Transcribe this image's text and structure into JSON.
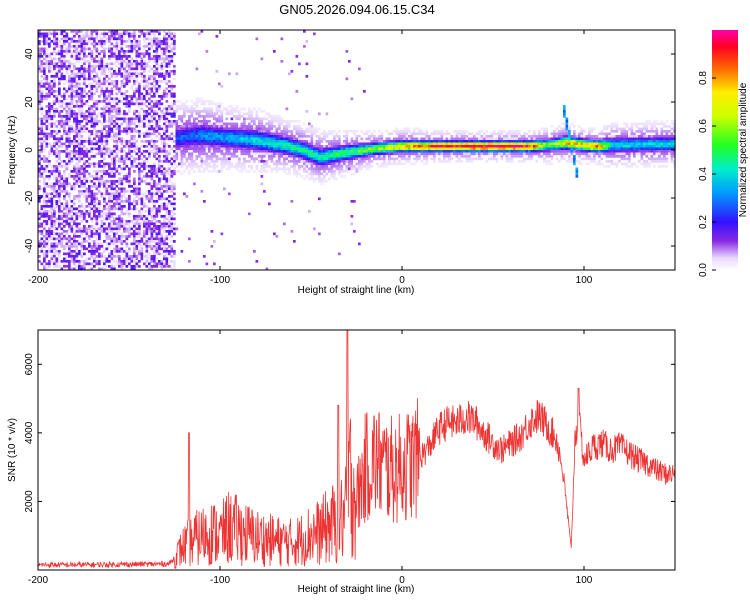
{
  "title": "GN05.2026.094.06.15.C34",
  "colors": {
    "snr_line": "#ee3333",
    "axis": "#000000",
    "background": "#ffffff"
  },
  "chart_data": [
    {
      "type": "heatmap",
      "title": "",
      "xlabel": "Height of straight line (km)",
      "ylabel": "Frequency (Hz)",
      "xlim": [
        -200,
        150
      ],
      "ylim": [
        -50,
        50
      ],
      "xticks": [
        -200,
        -100,
        0,
        100
      ],
      "yticks": [
        -40,
        -20,
        0,
        20,
        40
      ],
      "colorbar": {
        "label": "Normalized spectral amplitude",
        "range": [
          0,
          1
        ],
        "ticks": [
          0.0,
          0.2,
          0.4,
          0.6,
          0.8
        ],
        "tick_labels": [
          "0.0",
          "0.2",
          "0.4",
          "0.6",
          "0.8"
        ]
      },
      "noise_region": {
        "x_start": -200,
        "x_end": -125,
        "intensity": 0.08
      },
      "ridge": [
        {
          "x": -125,
          "f": 5,
          "width": 4,
          "amp": 0.25
        },
        {
          "x": -110,
          "f": 6,
          "width": 4,
          "amp": 0.3
        },
        {
          "x": -95,
          "f": 5,
          "width": 3.5,
          "amp": 0.35
        },
        {
          "x": -80,
          "f": 4,
          "width": 3.5,
          "amp": 0.4
        },
        {
          "x": -65,
          "f": 2,
          "width": 3,
          "amp": 0.45
        },
        {
          "x": -55,
          "f": 0,
          "width": 3,
          "amp": 0.45
        },
        {
          "x": -45,
          "f": -3,
          "width": 3,
          "amp": 0.45
        },
        {
          "x": -30,
          "f": -1,
          "width": 2.5,
          "amp": 0.5
        },
        {
          "x": -15,
          "f": 0.5,
          "width": 2,
          "amp": 0.6
        },
        {
          "x": 0,
          "f": 1.5,
          "width": 2,
          "amp": 0.75
        },
        {
          "x": 20,
          "f": 1.5,
          "width": 1.8,
          "amp": 0.95
        },
        {
          "x": 50,
          "f": 1.5,
          "width": 1.8,
          "amp": 1.0
        },
        {
          "x": 70,
          "f": 1.5,
          "width": 1.8,
          "amp": 0.95
        },
        {
          "x": 80,
          "f": 2,
          "width": 2,
          "amp": 0.55
        },
        {
          "x": 90,
          "f": 3,
          "width": 2.2,
          "amp": 0.75
        },
        {
          "x": 100,
          "f": 2,
          "width": 2,
          "amp": 0.8
        },
        {
          "x": 108,
          "f": 1.5,
          "width": 2,
          "amp": 0.85
        },
        {
          "x": 115,
          "f": 2,
          "width": 2.5,
          "amp": 0.4
        },
        {
          "x": 150,
          "f": 2.5,
          "width": 2.5,
          "amp": 0.4
        }
      ],
      "streak": {
        "x_start": 88,
        "x_end": 97,
        "f_start": 20,
        "f_end": -14,
        "amp": 0.35
      }
    },
    {
      "type": "line",
      "title": "",
      "xlabel": "Height of straight line (km)",
      "ylabel": "SNR (10 * v/v)",
      "xlim": [
        -200,
        150
      ],
      "ylim": [
        0,
        7000
      ],
      "xticks": [
        -200,
        -100,
        0,
        100
      ],
      "yticks": [
        2000,
        4000,
        6000
      ],
      "series": [
        {
          "name": "SNR",
          "color": "#ee3333",
          "x": [
            -200,
            -180,
            -160,
            -140,
            -128,
            -125,
            -120,
            -112,
            -105,
            -100,
            -95,
            -88,
            -80,
            -70,
            -60,
            -55,
            -50,
            -45,
            -40,
            -35,
            -31,
            -28,
            -25,
            -20,
            -15,
            -10,
            -5,
            0,
            5,
            10,
            15,
            20,
            25,
            30,
            35,
            40,
            45,
            50,
            55,
            60,
            65,
            70,
            75,
            80,
            85,
            88,
            90,
            93,
            95,
            97,
            100,
            105,
            110,
            115,
            120,
            125,
            130,
            135,
            140,
            145,
            150
          ],
          "values": [
            150,
            150,
            160,
            170,
            180,
            350,
            700,
            950,
            1100,
            1000,
            1250,
            1100,
            950,
            850,
            800,
            900,
            1050,
            1100,
            1300,
            1400,
            1600,
            2800,
            2000,
            3000,
            3200,
            3000,
            2900,
            3000,
            3100,
            3300,
            3600,
            4100,
            4300,
            4300,
            4450,
            4350,
            4000,
            3700,
            3500,
            3700,
            3900,
            4300,
            4500,
            4200,
            3800,
            3000,
            2100,
            600,
            3800,
            4400,
            3200,
            3600,
            3700,
            3500,
            3600,
            3400,
            3200,
            3100,
            2900,
            2800,
            2800
          ]
        }
      ],
      "spikes": [
        {
          "x": -117,
          "value": 4000
        },
        {
          "x": -30,
          "value": 7000
        },
        {
          "x": -35,
          "value": 4800
        },
        {
          "x": 97,
          "value": 5300
        }
      ]
    }
  ]
}
